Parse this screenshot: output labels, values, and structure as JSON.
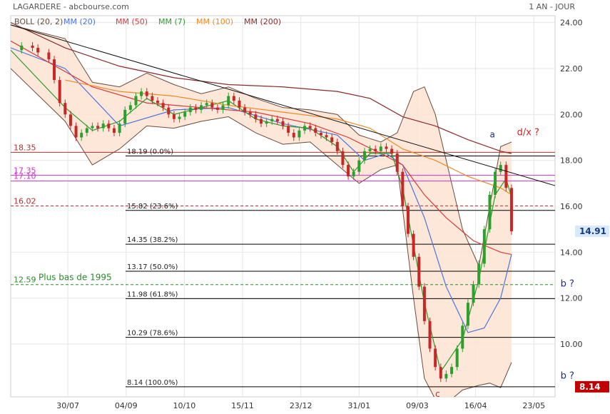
{
  "header": {
    "title": "LAGARDERE - abcbourse.com",
    "period": "1 AN - JOUR"
  },
  "colors": {
    "boll_fill": "#fbe3d2",
    "boll_line": "#6b4b3e",
    "ma20": "#4d74e0",
    "ma50": "#d93a3a",
    "ma7": "#2a9d2a",
    "ma100": "#f08a24",
    "ma200": "#8a2a2a",
    "candle_up": "#2ca02c",
    "candle_down": "#c62828",
    "fib_line": "#000000",
    "level_red": "#b03030",
    "level_magenta": "#cc33cc",
    "level_green": "#2a8a2a",
    "price_badge": "#d7e9fa",
    "low_badge": "#c00000"
  },
  "chart_data": {
    "type": "line",
    "title": "LAGARDERE - abcbourse.com",
    "subtitle": "1 AN - JOUR",
    "xlabel": "",
    "ylabel": "",
    "x_ticks": [
      "30/07",
      "04/09",
      "10/10",
      "15/11",
      "23/12",
      "31/01",
      "09/03",
      "16/04",
      "23/05"
    ],
    "y_ticks": [
      "24.00",
      "22.00",
      "20.00",
      "18.00",
      "16.00",
      "14.00",
      "12.00",
      "10.00"
    ],
    "ylim": [
      7.7,
      24.3
    ],
    "x_range": [
      0,
      100
    ],
    "grid": true,
    "legend_position": "top-left",
    "legend": [
      {
        "label": "BOLL (20, 2)",
        "key": "boll_line"
      },
      {
        "label": "MM (20)",
        "key": "ma20"
      },
      {
        "label": "MM (50)",
        "key": "ma50"
      },
      {
        "label": "MM (7)",
        "key": "ma7"
      },
      {
        "label": "MM (100)",
        "key": "ma100"
      },
      {
        "label": "MM (200)",
        "key": "ma200"
      }
    ],
    "close_series": [
      [
        0,
        22.8
      ],
      [
        2,
        23.0
      ],
      [
        4,
        22.9
      ],
      [
        5,
        22.7
      ],
      [
        7,
        22.4
      ],
      [
        8,
        21.5
      ],
      [
        9,
        20.5
      ],
      [
        10,
        20.0
      ],
      [
        11,
        19.5
      ],
      [
        12,
        19.0
      ],
      [
        13,
        19.2
      ],
      [
        14,
        19.4
      ],
      [
        15,
        19.5
      ],
      [
        16,
        19.4
      ],
      [
        17,
        19.6
      ],
      [
        18,
        19.4
      ],
      [
        19,
        19.2
      ],
      [
        20,
        19.6
      ],
      [
        21,
        20.2
      ],
      [
        22,
        20.4
      ],
      [
        23,
        20.8
      ],
      [
        24,
        21.0
      ],
      [
        25,
        20.8
      ],
      [
        26,
        20.6
      ],
      [
        27,
        20.5
      ],
      [
        28,
        20.3
      ],
      [
        29,
        20.0
      ],
      [
        30,
        19.8
      ],
      [
        31,
        19.9
      ],
      [
        32,
        20.1
      ],
      [
        33,
        20.3
      ],
      [
        34,
        20.2
      ],
      [
        35,
        20.4
      ],
      [
        36,
        20.5
      ],
      [
        37,
        20.3
      ],
      [
        38,
        20.2
      ],
      [
        39,
        20.4
      ],
      [
        40,
        20.8
      ],
      [
        41,
        20.6
      ],
      [
        42,
        20.3
      ],
      [
        43,
        20.1
      ],
      [
        44,
        20.0
      ],
      [
        45,
        19.8
      ],
      [
        46,
        19.6
      ],
      [
        47,
        19.7
      ],
      [
        48,
        19.8
      ],
      [
        49,
        19.7
      ],
      [
        50,
        19.5
      ],
      [
        51,
        19.2
      ],
      [
        52,
        19.0
      ],
      [
        53,
        19.3
      ],
      [
        54,
        19.5
      ],
      [
        55,
        19.4
      ],
      [
        56,
        19.2
      ],
      [
        57,
        19.1
      ],
      [
        58,
        19.0
      ],
      [
        59,
        18.8
      ],
      [
        60,
        18.4
      ],
      [
        61,
        17.8
      ],
      [
        62,
        17.3
      ],
      [
        63,
        17.5
      ],
      [
        64,
        18.0
      ],
      [
        65,
        18.4
      ],
      [
        66,
        18.5
      ],
      [
        67,
        18.4
      ],
      [
        68,
        18.6
      ],
      [
        69,
        18.5
      ],
      [
        70,
        18.3
      ],
      [
        71,
        17.5
      ],
      [
        72,
        16.0
      ],
      [
        73,
        14.8
      ],
      [
        74,
        13.8
      ],
      [
        75,
        12.5
      ],
      [
        76,
        11.0
      ],
      [
        77,
        9.8
      ],
      [
        78,
        9.0
      ],
      [
        79,
        8.5
      ],
      [
        80,
        8.7
      ],
      [
        81,
        9.0
      ],
      [
        82,
        9.8
      ],
      [
        83,
        10.8
      ],
      [
        84,
        11.8
      ],
      [
        85,
        12.6
      ],
      [
        86,
        13.5
      ],
      [
        87,
        15.0
      ],
      [
        88,
        16.5
      ],
      [
        89,
        17.5
      ],
      [
        90,
        17.8
      ],
      [
        91,
        16.8
      ],
      [
        92,
        14.91
      ]
    ],
    "series": [
      {
        "name": "MM (20)",
        "key": "ma20",
        "points": [
          [
            0,
            22.9
          ],
          [
            10,
            22.0
          ],
          [
            20,
            19.5
          ],
          [
            30,
            20.2
          ],
          [
            40,
            20.3
          ],
          [
            50,
            19.6
          ],
          [
            60,
            19.1
          ],
          [
            65,
            18.0
          ],
          [
            69,
            18.3
          ],
          [
            72,
            17.8
          ],
          [
            76,
            15.5
          ],
          [
            80,
            12.5
          ],
          [
            84,
            10.5
          ],
          [
            87,
            10.7
          ],
          [
            90,
            12.0
          ],
          [
            92,
            13.9
          ]
        ]
      },
      {
        "name": "MM (50)",
        "key": "ma50",
        "points": [
          [
            0,
            23.2
          ],
          [
            15,
            21.2
          ],
          [
            25,
            20.5
          ],
          [
            35,
            20.3
          ],
          [
            45,
            20.1
          ],
          [
            55,
            19.6
          ],
          [
            62,
            19.0
          ],
          [
            68,
            18.3
          ],
          [
            72,
            17.8
          ],
          [
            76,
            16.5
          ],
          [
            80,
            15.5
          ],
          [
            85,
            14.5
          ],
          [
            90,
            14.0
          ],
          [
            92,
            13.9
          ]
        ]
      },
      {
        "name": "MM (7)",
        "key": "ma7",
        "points": [
          [
            0,
            22.8
          ],
          [
            10,
            20.3
          ],
          [
            15,
            19.3
          ],
          [
            20,
            19.7
          ],
          [
            25,
            20.7
          ],
          [
            30,
            20.0
          ],
          [
            35,
            20.3
          ],
          [
            40,
            20.6
          ],
          [
            45,
            19.8
          ],
          [
            50,
            19.5
          ],
          [
            55,
            19.4
          ],
          [
            60,
            18.6
          ],
          [
            63,
            17.5
          ],
          [
            66,
            18.3
          ],
          [
            70,
            18.3
          ],
          [
            72,
            16.8
          ],
          [
            76,
            11.8
          ],
          [
            79,
            8.8
          ],
          [
            83,
            10.2
          ],
          [
            86,
            12.8
          ],
          [
            89,
            16.5
          ],
          [
            91,
            17.2
          ],
          [
            92,
            16.4
          ]
        ]
      },
      {
        "name": "MM (100)",
        "key": "ma100",
        "points": [
          [
            10,
            21.5
          ],
          [
            20,
            21.0
          ],
          [
            30,
            20.8
          ],
          [
            40,
            20.4
          ],
          [
            50,
            20.1
          ],
          [
            60,
            19.8
          ],
          [
            66,
            19.4
          ],
          [
            72,
            18.5
          ],
          [
            78,
            18.0
          ],
          [
            84,
            17.3
          ],
          [
            90,
            16.8
          ],
          [
            92,
            16.5
          ]
        ]
      },
      {
        "name": "MM (200)",
        "key": "ma200",
        "points": [
          [
            0,
            24.0
          ],
          [
            10,
            22.9
          ],
          [
            20,
            22.1
          ],
          [
            30,
            21.6
          ],
          [
            40,
            21.3
          ],
          [
            50,
            21.2
          ],
          [
            60,
            21.0
          ],
          [
            66,
            20.7
          ],
          [
            72,
            19.9
          ],
          [
            78,
            19.5
          ],
          [
            84,
            18.9
          ],
          [
            90,
            18.4
          ],
          [
            92,
            18.3
          ]
        ]
      }
    ],
    "bollinger": {
      "upper": [
        [
          0,
          23.9
        ],
        [
          10,
          23.3
        ],
        [
          15,
          21.4
        ],
        [
          20,
          21.2
        ],
        [
          25,
          21.8
        ],
        [
          30,
          21.3
        ],
        [
          35,
          20.9
        ],
        [
          40,
          21.2
        ],
        [
          45,
          20.7
        ],
        [
          50,
          20.3
        ],
        [
          55,
          20.2
        ],
        [
          60,
          20.0
        ],
        [
          64,
          19.1
        ],
        [
          68,
          18.8
        ],
        [
          71,
          19.2
        ],
        [
          74,
          21.0
        ],
        [
          76,
          21.2
        ],
        [
          78,
          20.0
        ],
        [
          80,
          18.0
        ],
        [
          83,
          15.0
        ],
        [
          86,
          13.4
        ],
        [
          88,
          16.0
        ],
        [
          90,
          18.6
        ],
        [
          92,
          18.8
        ]
      ],
      "lower": [
        [
          0,
          22.0
        ],
        [
          10,
          19.7
        ],
        [
          15,
          17.8
        ],
        [
          20,
          18.5
        ],
        [
          25,
          19.5
        ],
        [
          30,
          19.4
        ],
        [
          35,
          19.7
        ],
        [
          40,
          19.9
        ],
        [
          45,
          19.2
        ],
        [
          50,
          18.7
        ],
        [
          55,
          18.8
        ],
        [
          60,
          17.8
        ],
        [
          64,
          17.0
        ],
        [
          68,
          17.6
        ],
        [
          71,
          17.8
        ],
        [
          74,
          12.0
        ],
        [
          76,
          8.5
        ],
        [
          78,
          7.6
        ],
        [
          80,
          7.4
        ],
        [
          83,
          8.0
        ],
        [
          86,
          8.2
        ],
        [
          88,
          8.3
        ],
        [
          90,
          8.1
        ],
        [
          92,
          9.2
        ]
      ]
    },
    "trendline": [
      [
        0,
        23.9
      ],
      [
        100,
        16.9
      ]
    ],
    "horizontal_levels": [
      {
        "label": "18.35",
        "value": 18.35,
        "style": "solid",
        "key": "level_red"
      },
      {
        "label": "17.35",
        "value": 17.35,
        "style": "solid",
        "key": "level_magenta"
      },
      {
        "label": "17.10",
        "value": 17.1,
        "style": "solid",
        "key": "level_magenta"
      },
      {
        "label": "16.02",
        "value": 16.02,
        "style": "dashed",
        "key": "level_red"
      },
      {
        "label": "12.59",
        "value": 12.59,
        "style": "dashed",
        "key": "level_green",
        "note": "Plus bas de 1995"
      }
    ],
    "fibonacci_levels": [
      {
        "label": "18.19  (0.0%)",
        "value": 18.19
      },
      {
        "label": "15.82  (23.6%)",
        "value": 15.82
      },
      {
        "label": "14.35  (38.2%)",
        "value": 14.35
      },
      {
        "label": "13.17  (50.0%)",
        "value": 13.17
      },
      {
        "label": "11.98  (61.8%)",
        "value": 11.98
      },
      {
        "label": "10.29  (78.6%)",
        "value": 10.29
      },
      {
        "label": "8.14  (100.0%)",
        "value": 8.14
      }
    ],
    "badges": [
      {
        "text": "14.91",
        "value": 14.91,
        "key": "price_badge",
        "text_color": "#1a3a7a"
      },
      {
        "text": "8.14",
        "value": 8.14,
        "key": "low_badge",
        "text_color": "#ffffff"
      }
    ],
    "annotations": [
      {
        "text": "a",
        "x": 88,
        "y": 19.0,
        "color": "#1a2a8a"
      },
      {
        "text": "d/x ?",
        "x": 93,
        "y": 19.1,
        "color": "#c62828"
      },
      {
        "text": "b ?",
        "x": 101,
        "y": 12.5,
        "color": "#1a2a8a"
      },
      {
        "text": "b ?",
        "x": 101,
        "y": 8.5,
        "color": "#1a2a8a"
      },
      {
        "text": "c",
        "x": 78,
        "y": 7.7,
        "color": "#c62828"
      }
    ]
  }
}
